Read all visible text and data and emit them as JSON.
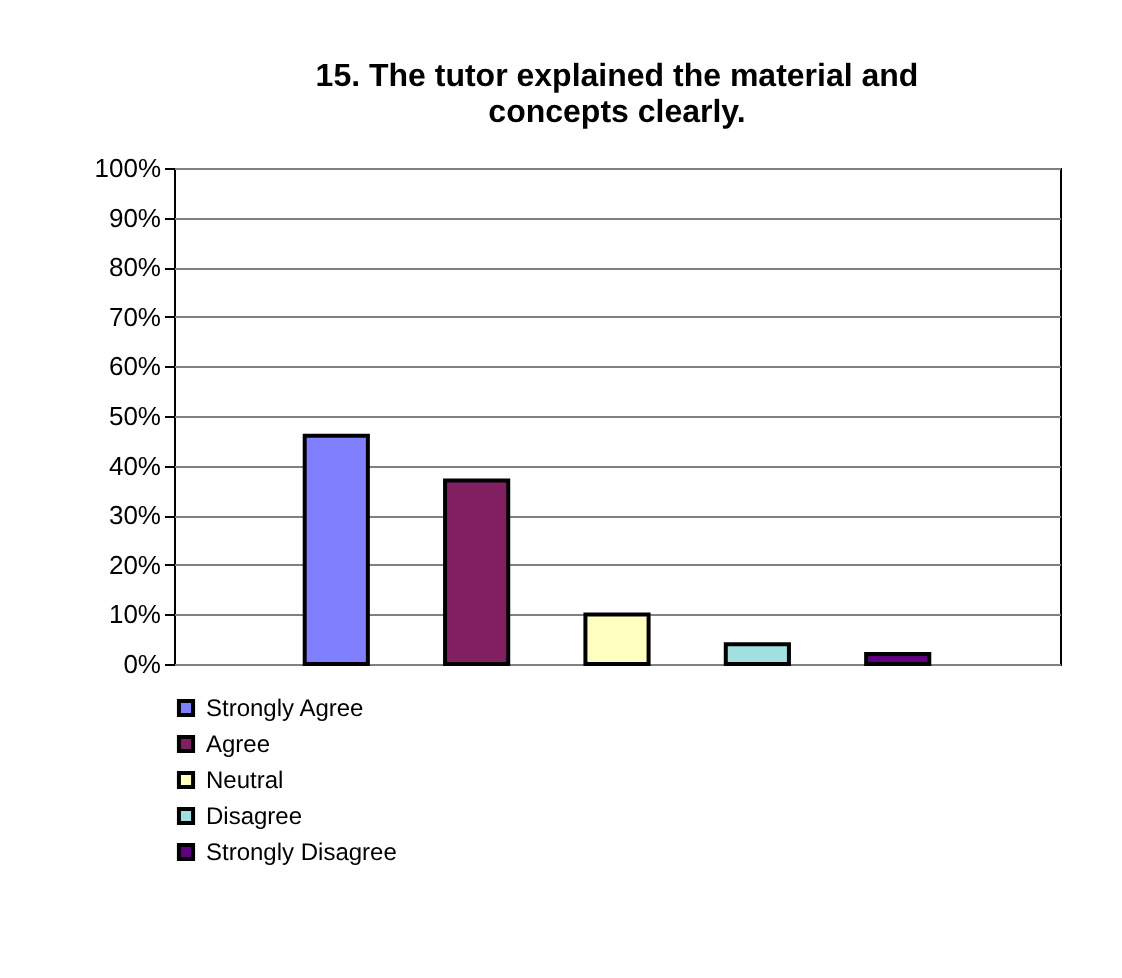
{
  "chart_data": {
    "type": "bar",
    "title": "15. The tutor explained the material and concepts clearly.",
    "categories": [
      null
    ],
    "series": [
      {
        "name": "Strongly Agree",
        "color": "#8080ff",
        "values": [
          46
        ]
      },
      {
        "name": "Agree",
        "color": "#802060",
        "values": [
          37
        ]
      },
      {
        "name": "Neutral",
        "color": "#ffffc0",
        "values": [
          10
        ]
      },
      {
        "name": "Disagree",
        "color": "#a0e0e0",
        "values": [
          4
        ]
      },
      {
        "name": "Strongly Disagree",
        "color": "#600080",
        "values": [
          2
        ]
      }
    ],
    "ylim": [
      0,
      100
    ],
    "yticks": [
      {
        "value": 0,
        "label": "0%"
      },
      {
        "value": 10,
        "label": "10%"
      },
      {
        "value": 20,
        "label": "20%"
      },
      {
        "value": 30,
        "label": "30%"
      },
      {
        "value": 40,
        "label": "40%"
      },
      {
        "value": 50,
        "label": "50%"
      },
      {
        "value": 60,
        "label": "60%"
      },
      {
        "value": 70,
        "label": "70%"
      },
      {
        "value": 80,
        "label": "80%"
      },
      {
        "value": 90,
        "label": "90%"
      },
      {
        "value": 100,
        "label": "100%"
      }
    ],
    "grid": "y",
    "legend": "bottom"
  }
}
